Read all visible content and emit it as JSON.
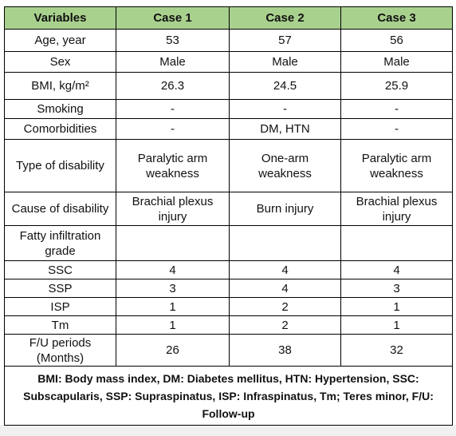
{
  "table": {
    "header": [
      "Variables",
      "Case 1",
      "Case 2",
      "Case 3"
    ],
    "rows": [
      [
        "Age, year",
        "53",
        "57",
        "56"
      ],
      [
        "Sex",
        "Male",
        "Male",
        "Male"
      ],
      [
        "BMI, kg/m²",
        "26.3",
        "24.5",
        "25.9"
      ],
      [
        "Smoking",
        "-",
        "-",
        "-"
      ],
      [
        "Comorbidities",
        "-",
        "DM, HTN",
        "-"
      ],
      [
        "Type of disability",
        "Paralytic arm\nweakness",
        "One-arm\nweakness",
        "Paralytic arm\nweakness"
      ],
      [
        "Cause of disability",
        "Brachial plexus\ninjury",
        "Burn injury",
        "Brachial plexus\ninjury"
      ],
      [
        "Fatty infiltration\ngrade",
        "",
        "",
        ""
      ],
      [
        "SSC",
        "4",
        "4",
        "4"
      ],
      [
        "SSP",
        "3",
        "4",
        "3"
      ],
      [
        "ISP",
        "1",
        "2",
        "1"
      ],
      [
        "Tm",
        "1",
        "2",
        "1"
      ],
      [
        "F/U periods\n(Months)",
        "26",
        "38",
        "32"
      ]
    ],
    "footnote": "BMI: Body mass index, DM: Diabetes mellitus, HTN: Hypertension, SSC: Subscapularis, SSP: Supraspinatus, ISP: Infraspinatus, Tm;  Teres minor, F/U: Follow-up"
  }
}
